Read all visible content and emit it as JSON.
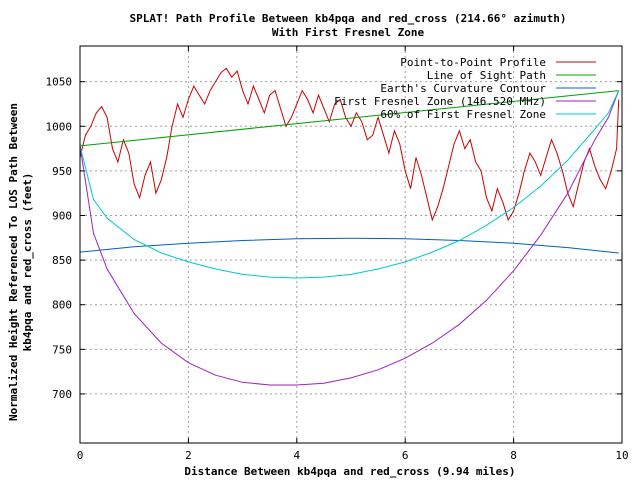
{
  "chart_data": {
    "type": "line",
    "title": "SPLAT! Path Profile Between kb4pqa and red_cross (214.66° azimuth)",
    "subtitle": "With First Fresnel Zone",
    "xlabel": "Distance Between kb4pqa and red_cross (9.94 miles)",
    "ylabel_line1": "Normalized Height Referenced To LOS Path Between",
    "ylabel_line2": "kb4pqa and red_cross (feet)",
    "xlim": [
      0,
      10
    ],
    "ylim": [
      645,
      1090
    ],
    "x_ticks": [
      0,
      2,
      4,
      6,
      8,
      10
    ],
    "y_ticks": [
      700,
      750,
      800,
      850,
      900,
      950,
      1000,
      1050
    ],
    "grid": true,
    "legend_position": "top-right",
    "series": [
      {
        "name": "Point-to-Point Profile",
        "color": "#cc0000",
        "x": [
          0,
          0.1,
          0.2,
          0.3,
          0.4,
          0.5,
          0.6,
          0.7,
          0.8,
          0.9,
          1.0,
          1.1,
          1.2,
          1.3,
          1.4,
          1.5,
          1.6,
          1.7,
          1.8,
          1.9,
          2.0,
          2.1,
          2.2,
          2.3,
          2.4,
          2.5,
          2.6,
          2.7,
          2.8,
          2.9,
          3.0,
          3.1,
          3.2,
          3.3,
          3.4,
          3.5,
          3.6,
          3.7,
          3.8,
          3.9,
          4.0,
          4.1,
          4.2,
          4.3,
          4.4,
          4.5,
          4.6,
          4.7,
          4.8,
          4.9,
          5.0,
          5.1,
          5.2,
          5.3,
          5.4,
          5.5,
          5.6,
          5.7,
          5.8,
          5.9,
          6.0,
          6.1,
          6.2,
          6.3,
          6.4,
          6.5,
          6.6,
          6.7,
          6.8,
          6.9,
          7.0,
          7.1,
          7.2,
          7.3,
          7.4,
          7.5,
          7.6,
          7.7,
          7.8,
          7.9,
          8.0,
          8.1,
          8.2,
          8.3,
          8.4,
          8.5,
          8.6,
          8.7,
          8.8,
          8.9,
          9.0,
          9.1,
          9.2,
          9.3,
          9.4,
          9.5,
          9.6,
          9.7,
          9.8,
          9.9,
          9.94
        ],
        "values": [
          965,
          990,
          1000,
          1015,
          1022,
          1010,
          975,
          960,
          985,
          970,
          935,
          920,
          945,
          960,
          925,
          940,
          965,
          1000,
          1025,
          1010,
          1030,
          1045,
          1035,
          1025,
          1040,
          1050,
          1060,
          1065,
          1055,
          1062,
          1040,
          1025,
          1045,
          1030,
          1015,
          1035,
          1040,
          1020,
          1000,
          1010,
          1025,
          1040,
          1030,
          1015,
          1035,
          1020,
          1005,
          1025,
          1030,
          1010,
          1000,
          1015,
          1005,
          985,
          990,
          1010,
          990,
          970,
          995,
          980,
          950,
          930,
          965,
          945,
          920,
          895,
          910,
          930,
          955,
          980,
          995,
          975,
          985,
          960,
          950,
          920,
          905,
          930,
          915,
          895,
          905,
          925,
          950,
          970,
          960,
          945,
          965,
          985,
          970,
          950,
          925,
          910,
          935,
          960,
          975,
          955,
          940,
          930,
          950,
          975,
          1030
        ]
      },
      {
        "name": "Line of Sight Path",
        "color": "#00a000",
        "x": [
          0,
          9.94
        ],
        "values": [
          978,
          1040
        ]
      },
      {
        "name": "Earth's Curvature Contour",
        "color": "#0060c0",
        "x": [
          0,
          1,
          2,
          3,
          4,
          5,
          6,
          7,
          8,
          9,
          9.94
        ],
        "values": [
          859,
          865,
          869,
          872,
          874,
          874.5,
          874,
          872,
          869,
          864,
          858
        ]
      },
      {
        "name": "First Fresnel Zone (146.520 MHz)",
        "color": "#a020c0",
        "x": [
          0,
          0.25,
          0.5,
          1,
          1.5,
          2,
          2.5,
          3,
          3.5,
          4,
          4.5,
          5,
          5.5,
          6,
          6.5,
          7,
          7.5,
          8,
          8.5,
          9,
          9.5,
          9.75,
          9.94
        ],
        "values": [
          978,
          880,
          840,
          790,
          757,
          735,
          721,
          713,
          710,
          710,
          712,
          718,
          727,
          740,
          757,
          778,
          805,
          838,
          878,
          925,
          985,
          1010,
          1040
        ]
      },
      {
        "name": "60% of First Fresnel Zone",
        "color": "#00c8d0",
        "x": [
          0,
          0.25,
          0.5,
          1,
          1.5,
          2,
          2.5,
          3,
          3.5,
          4,
          4.5,
          5,
          5.5,
          6,
          6.5,
          7,
          7.5,
          8,
          8.5,
          9,
          9.5,
          9.75,
          9.94
        ],
        "values": [
          978,
          918,
          897,
          873,
          858,
          848,
          840,
          834,
          831,
          830,
          831,
          834,
          840,
          848,
          859,
          872,
          889,
          909,
          933,
          962,
          997,
          1015,
          1040
        ]
      }
    ]
  }
}
